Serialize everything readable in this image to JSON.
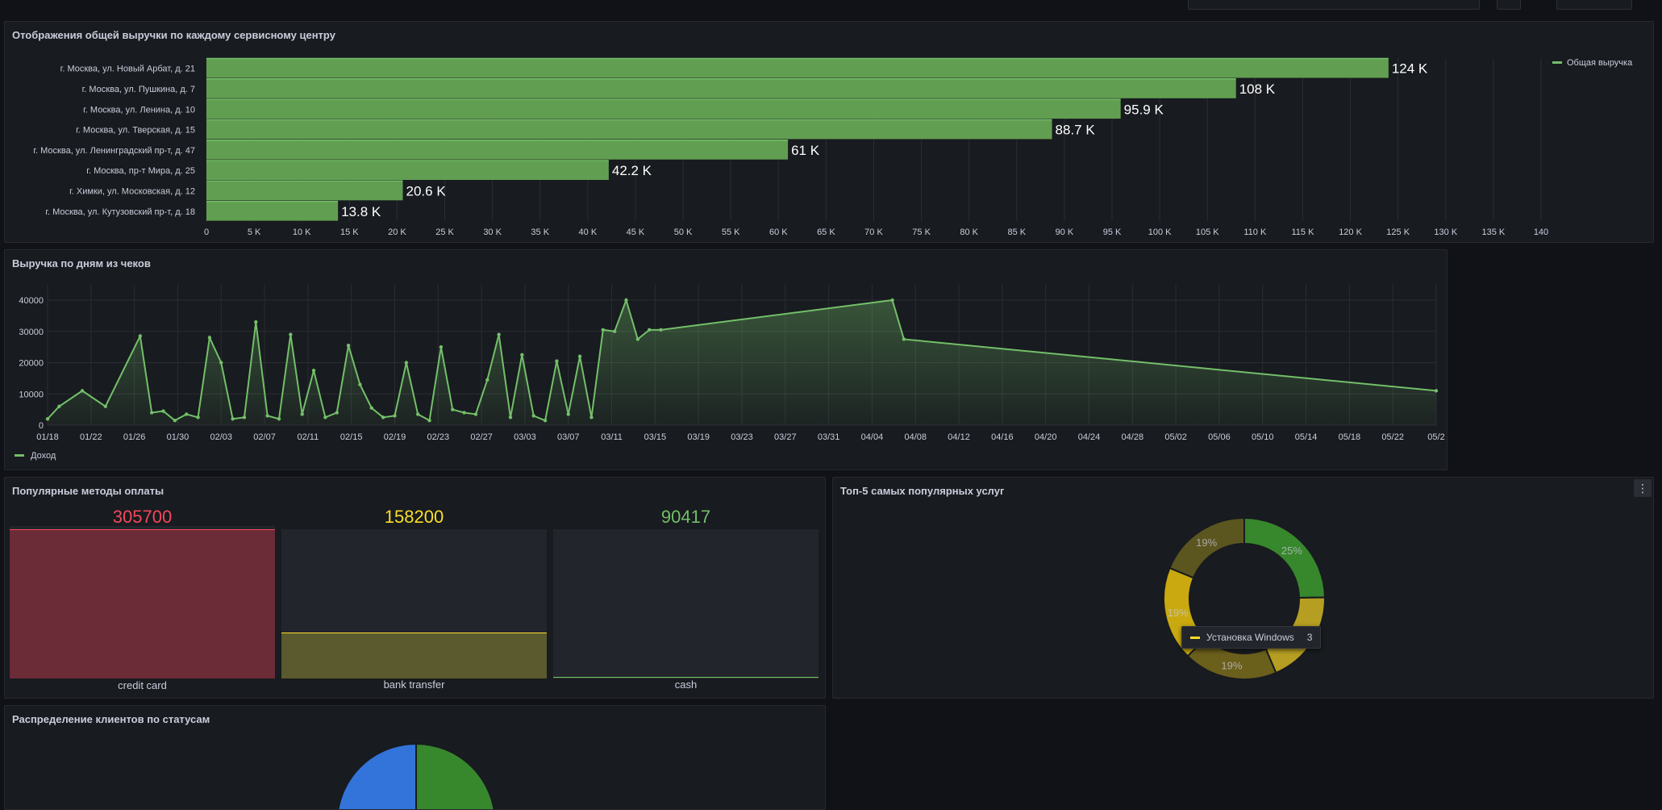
{
  "colors": {
    "green": "#73bf69",
    "yellow": "#fade2a",
    "red": "#f2495c",
    "panel": "#181b1f",
    "grid": "#2a2d33"
  },
  "topbar": {
    "time_range_icon": "clock-icon",
    "zoom_icon": "zoom-out-icon",
    "refresh_icon": "refresh-icon"
  },
  "revenue_panel": {
    "title": "Отображения общей выручки по каждому сервисному центру",
    "legend": "Общая выручка",
    "chart_data": {
      "type": "bar",
      "orientation": "horizontal",
      "categories": [
        "г. Москва, ул. Новый Арбат, д. 21",
        "г. Москва, ул. Пушкина, д. 7",
        "г. Москва, ул. Ленина, д. 10",
        "г. Москва, ул. Тверская, д. 15",
        "г. Москва, ул. Ленинградский пр-т, д. 47",
        "г. Москва, пр-т Мира, д. 25",
        "г. Химки, ул. Московская, д. 12",
        "г. Москва, ул. Кутузовский пр-т, д. 18"
      ],
      "values": [
        124000,
        108000,
        95900,
        88700,
        61000,
        42200,
        20600,
        13800
      ],
      "value_labels": [
        "124 K",
        "108 K",
        "95.9 K",
        "88.7 K",
        "61 K",
        "42.2 K",
        "20.6 K",
        "13.8 K"
      ],
      "xlim": [
        0,
        140000
      ],
      "x_ticks": [
        "0",
        "5 K",
        "10 K",
        "15 K",
        "20 K",
        "25 K",
        "30 K",
        "35 K",
        "40 K",
        "45 K",
        "50 K",
        "55 K",
        "60 K",
        "65 K",
        "70 K",
        "75 K",
        "80 K",
        "85 K",
        "90 K",
        "95 K",
        "100 K",
        "105 K",
        "110 K",
        "115 K",
        "120 K",
        "125 K",
        "130 K",
        "135 K",
        "140"
      ],
      "series": [
        {
          "name": "Общая выручка"
        }
      ],
      "legend_position": "top-right",
      "grid": true
    }
  },
  "daily_panel": {
    "title": "Выручка по дням из чеков",
    "legend": "Доход",
    "chart_data": {
      "type": "area",
      "ylim": [
        0,
        45000
      ],
      "y_ticks": [
        "0",
        "10000",
        "20000",
        "30000",
        "40000"
      ],
      "x_ticks": [
        "01/18",
        "01/22",
        "01/26",
        "01/30",
        "02/03",
        "02/07",
        "02/11",
        "02/15",
        "02/19",
        "02/23",
        "02/27",
        "03/03",
        "03/07",
        "03/11",
        "03/15",
        "03/19",
        "03/23",
        "03/27",
        "03/31",
        "04/04",
        "04/08",
        "04/12",
        "04/16",
        "04/20",
        "04/24",
        "04/28",
        "05/02",
        "05/06",
        "05/10",
        "05/14",
        "05/18",
        "05/22",
        "05/2"
      ],
      "series": [
        {
          "name": "Доход",
          "x": [
            0,
            1,
            3,
            5,
            8,
            9,
            10,
            11,
            12,
            13,
            14,
            15,
            16,
            17,
            18,
            19,
            20,
            21,
            22,
            23,
            24,
            25,
            26,
            27,
            28,
            29,
            30,
            31,
            32,
            33,
            34,
            35,
            36,
            37,
            38,
            39,
            40,
            41,
            42,
            43,
            44,
            45,
            46,
            47,
            48,
            49,
            50,
            51,
            52,
            53,
            73,
            74,
            120
          ],
          "y": [
            2000,
            6000,
            11000,
            6000,
            28500,
            4000,
            4500,
            1500,
            3500,
            2500,
            28000,
            20000,
            2000,
            2500,
            33000,
            3000,
            2000,
            29000,
            3500,
            17500,
            2500,
            4000,
            25500,
            13000,
            5500,
            2500,
            3000,
            20000,
            3500,
            1500,
            25000,
            5000,
            4000,
            3500,
            14500,
            29000,
            2500,
            22500,
            3000,
            1500,
            20500,
            3500,
            22000,
            2500,
            30500,
            30000,
            40000,
            27500,
            30500,
            30500,
            40000,
            27500,
            11000
          ]
        }
      ],
      "legend_position": "bottom-left",
      "grid": true
    }
  },
  "payments_panel": {
    "title": "Популярные методы оплаты",
    "items": [
      {
        "label": "credit card",
        "value": "305700",
        "num": 305700,
        "color": "#f2495c"
      },
      {
        "label": "bank transfer",
        "value": "158200",
        "num": 158200,
        "color": "#fade2a"
      },
      {
        "label": "cash",
        "value": "90417",
        "num": 90417,
        "color": "#73bf69"
      }
    ],
    "fill_fraction": [
      1.0,
      0.31,
      0.01
    ]
  },
  "services_panel": {
    "title": "Топ-5 самых популярных услуг",
    "menu_icon": "vertical-dots-icon",
    "chart_data": {
      "type": "pie",
      "donut": true,
      "slices": [
        {
          "pct": 25,
          "color": "#37872d",
          "label": "25%"
        },
        {
          "pct": 19,
          "color": "#b59e22",
          "label": ""
        },
        {
          "pct": 19,
          "color": "#6b5f1c",
          "label": "19%"
        },
        {
          "pct": 19,
          "color": "#c9a90f",
          "label": "19%"
        },
        {
          "pct": 19,
          "color": "#5b5520",
          "label": "19%"
        }
      ]
    },
    "tooltip": {
      "name": "Установка Windows",
      "value": "3"
    }
  },
  "status_panel": {
    "title": "Распределение клиентов по статусам",
    "chart_data": {
      "type": "pie",
      "slices": [
        {
          "color": "#3274d9"
        },
        {
          "color": "#37872d"
        }
      ]
    }
  }
}
